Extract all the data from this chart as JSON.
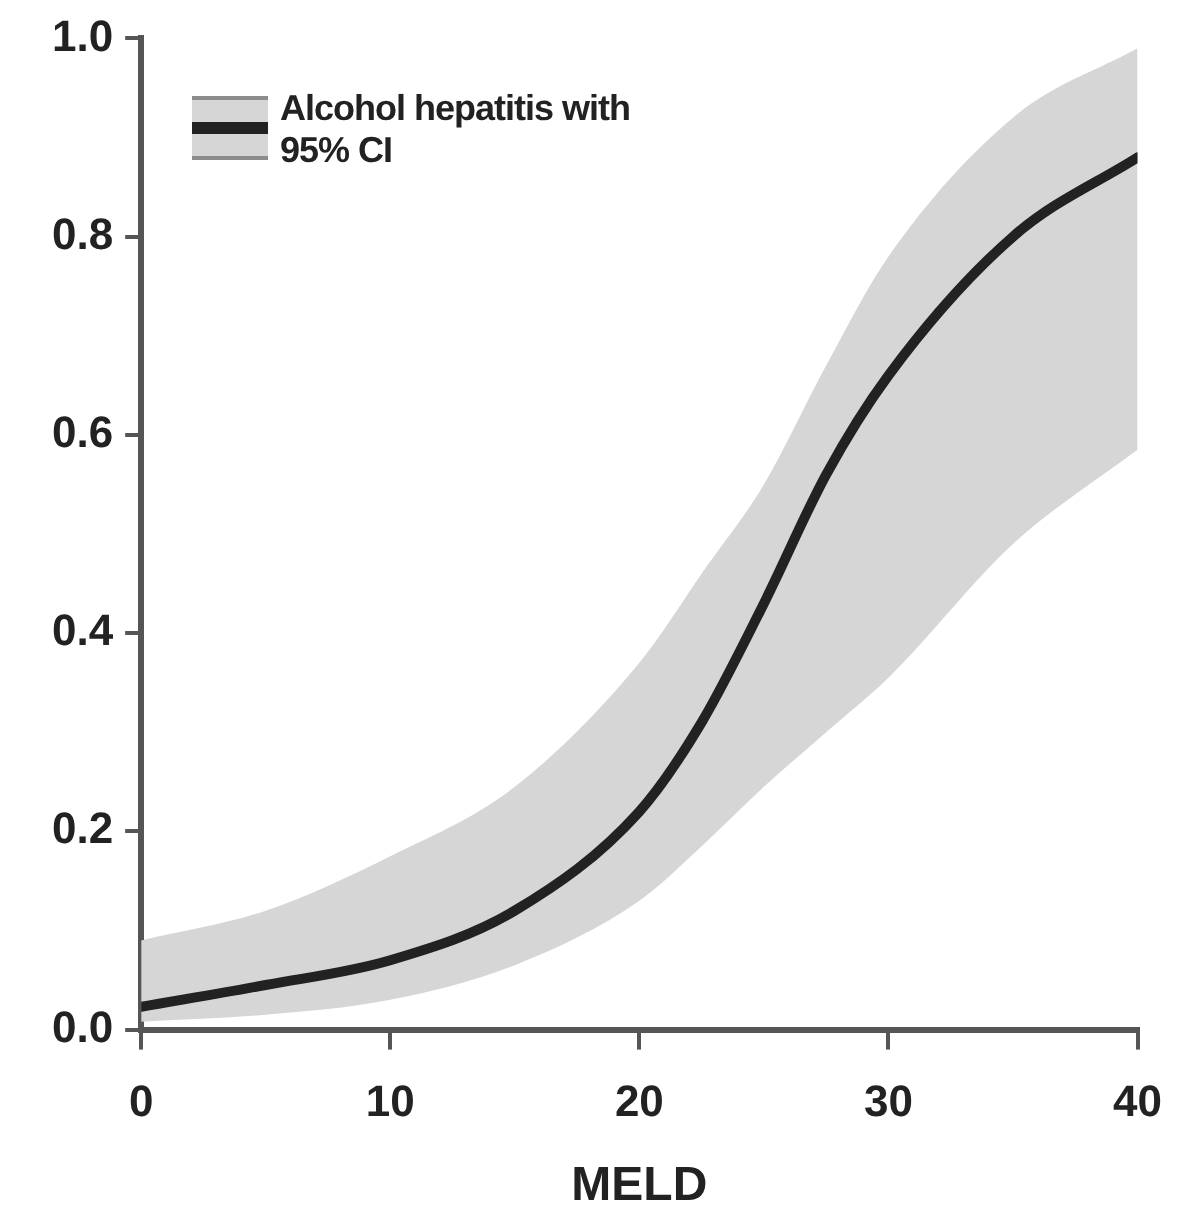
{
  "chart_data": {
    "type": "line",
    "xlabel": "MELD",
    "legend": "top left",
    "grid": false,
    "marker": "none",
    "line_style": "solid",
    "xlim": [
      0,
      40
    ],
    "xticks": [
      0,
      10,
      20,
      30,
      40
    ],
    "ylim": [
      0,
      1
    ],
    "yticks": [
      {
        "value": 0,
        "label": "0.0"
      },
      {
        "value": 0.2,
        "label": "0.2"
      },
      {
        "value": 0.4,
        "label": "0.4"
      },
      {
        "value": 0.6,
        "label": "0.6"
      },
      {
        "value": 0.8,
        "label": "0.8"
      },
      {
        "value": 1,
        "label": "1.0"
      }
    ],
    "series": [
      {
        "name": "Alcohol hepatitis with 95% CI",
        "color": "#222222",
        "x": [
          0,
          5,
          10,
          15,
          20,
          22.5,
          25,
          27.5,
          30,
          35,
          40
        ],
        "values": [
          0.023,
          0.045,
          0.07,
          0.12,
          0.22,
          0.31,
          0.43,
          0.56,
          0.66,
          0.8,
          0.88
        ],
        "lower": [
          0.008,
          0.015,
          0.03,
          0.065,
          0.13,
          0.185,
          0.245,
          0.3,
          0.355,
          0.49,
          0.585
        ],
        "upper": [
          0.09,
          0.12,
          0.175,
          0.245,
          0.37,
          0.46,
          0.55,
          0.67,
          0.78,
          0.92,
          0.99
        ]
      }
    ]
  }
}
